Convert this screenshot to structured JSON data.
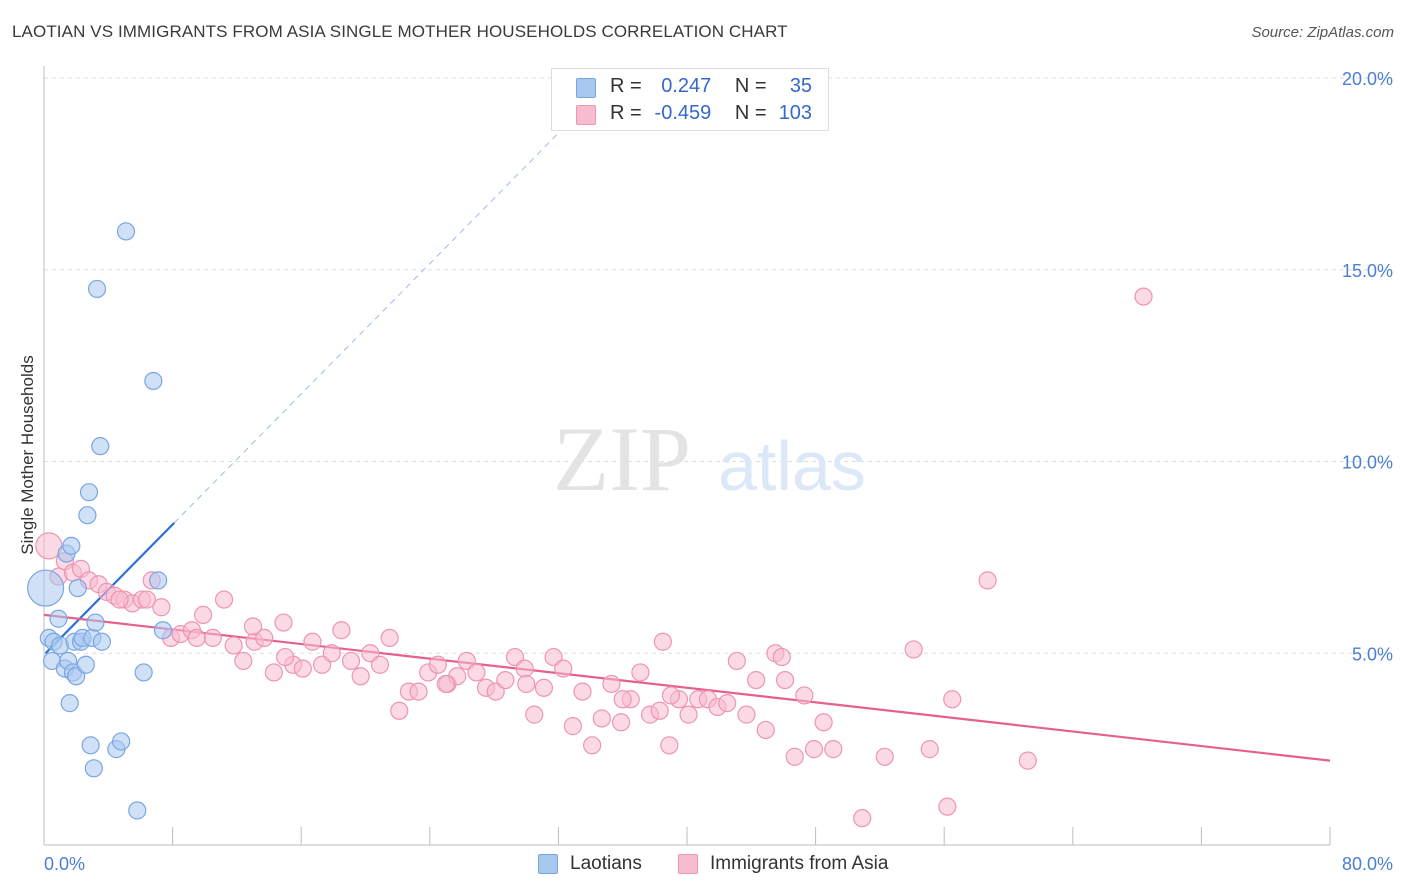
{
  "header": {
    "title": "LAOTIAN VS IMMIGRANTS FROM ASIA SINGLE MOTHER HOUSEHOLDS CORRELATION CHART",
    "source": "Source: ZipAtlas.com"
  },
  "watermark": {
    "zip": "ZIP",
    "atlas": "atlas"
  },
  "legend": {
    "rows": [
      {
        "r_label": "R =",
        "r_value": "0.247",
        "n_label": "N =",
        "n_value": "35"
      },
      {
        "r_label": "R =",
        "r_value": "-0.459",
        "n_label": "N =",
        "n_value": "103"
      }
    ]
  },
  "bottom_legend": {
    "series1": "Laotians",
    "series2": "Immigrants from Asia"
  },
  "colors": {
    "laotian_fill": "#a9c8f0",
    "laotian_stroke": "#7aa6e0",
    "laotian_line": "#2c6fd6",
    "asia_fill": "#f7bcd0",
    "asia_stroke": "#ee94b4",
    "asia_line": "#e5608e",
    "tick_text": "#4a7fd1",
    "grid": "#dddddd"
  },
  "chart_data": {
    "type": "scatter",
    "title": "LAOTIAN VS IMMIGRANTS FROM ASIA SINGLE MOTHER HOUSEHOLDS CORRELATION CHART",
    "xlabel": "",
    "ylabel": "Single Mother Households",
    "xlim": [
      0,
      80
    ],
    "ylim": [
      0,
      20.5
    ],
    "x_tick_labels": [
      "0.0%",
      "80.0%"
    ],
    "y_ticks": [
      5,
      10,
      15,
      20
    ],
    "y_tick_labels": [
      "5.0%",
      "10.0%",
      "15.0%",
      "20.0%"
    ],
    "grid": true,
    "legend_position": "top-center",
    "series": [
      {
        "name": "Laotians",
        "R": 0.247,
        "N": 35,
        "trend": {
          "x0": 0.1,
          "y0": 5.0,
          "x1": 8.1,
          "y1": 8.4,
          "dashed_to": {
            "x": 33.5,
            "y": 19.2
          }
        },
        "points": [
          {
            "x": 0.1,
            "y": 6.7,
            "size": 18
          },
          {
            "x": 0.3,
            "y": 5.4
          },
          {
            "x": 0.5,
            "y": 4.8
          },
          {
            "x": 0.6,
            "y": 5.3
          },
          {
            "x": 0.9,
            "y": 5.9
          },
          {
            "x": 1.0,
            "y": 5.2
          },
          {
            "x": 1.3,
            "y": 4.6
          },
          {
            "x": 1.4,
            "y": 7.6
          },
          {
            "x": 1.5,
            "y": 4.8
          },
          {
            "x": 1.6,
            "y": 3.7
          },
          {
            "x": 1.7,
            "y": 7.8
          },
          {
            "x": 1.8,
            "y": 4.5
          },
          {
            "x": 1.9,
            "y": 5.3
          },
          {
            "x": 2.0,
            "y": 4.4
          },
          {
            "x": 2.1,
            "y": 6.7
          },
          {
            "x": 2.3,
            "y": 5.3
          },
          {
            "x": 2.4,
            "y": 5.4
          },
          {
            "x": 2.6,
            "y": 4.7
          },
          {
            "x": 2.8,
            "y": 9.2
          },
          {
            "x": 3.0,
            "y": 5.4
          },
          {
            "x": 3.2,
            "y": 5.8
          },
          {
            "x": 3.5,
            "y": 10.4
          },
          {
            "x": 3.6,
            "y": 5.3
          },
          {
            "x": 2.7,
            "y": 8.6
          },
          {
            "x": 2.9,
            "y": 2.6
          },
          {
            "x": 3.1,
            "y": 2.0
          },
          {
            "x": 3.3,
            "y": 14.5
          },
          {
            "x": 4.5,
            "y": 2.5
          },
          {
            "x": 4.8,
            "y": 2.7
          },
          {
            "x": 5.1,
            "y": 16.0
          },
          {
            "x": 5.8,
            "y": 0.9
          },
          {
            "x": 6.2,
            "y": 4.5
          },
          {
            "x": 6.8,
            "y": 12.1
          },
          {
            "x": 7.1,
            "y": 6.9
          },
          {
            "x": 7.4,
            "y": 5.6
          }
        ]
      },
      {
        "name": "Immigrants from Asia",
        "R": -0.459,
        "N": 103,
        "trend": {
          "x0": 0,
          "y0": 6.0,
          "x1": 80,
          "y1": 2.2
        },
        "points": [
          {
            "x": 0.3,
            "y": 7.8,
            "size": 13
          },
          {
            "x": 0.9,
            "y": 7.0
          },
          {
            "x": 1.3,
            "y": 7.4
          },
          {
            "x": 1.8,
            "y": 7.1
          },
          {
            "x": 2.3,
            "y": 7.2
          },
          {
            "x": 2.8,
            "y": 6.9
          },
          {
            "x": 3.4,
            "y": 6.8
          },
          {
            "x": 3.9,
            "y": 6.6
          },
          {
            "x": 4.4,
            "y": 6.5
          },
          {
            "x": 5.0,
            "y": 6.4
          },
          {
            "x": 5.5,
            "y": 6.3
          },
          {
            "x": 6.1,
            "y": 6.4
          },
          {
            "x": 6.7,
            "y": 6.9
          },
          {
            "x": 7.3,
            "y": 6.2
          },
          {
            "x": 7.9,
            "y": 5.4
          },
          {
            "x": 8.5,
            "y": 5.5
          },
          {
            "x": 9.2,
            "y": 5.6
          },
          {
            "x": 9.9,
            "y": 6.0
          },
          {
            "x": 10.5,
            "y": 5.4
          },
          {
            "x": 11.2,
            "y": 6.4
          },
          {
            "x": 11.8,
            "y": 5.2
          },
          {
            "x": 12.4,
            "y": 4.8
          },
          {
            "x": 13.1,
            "y": 5.3
          },
          {
            "x": 13.7,
            "y": 5.4
          },
          {
            "x": 14.3,
            "y": 4.5
          },
          {
            "x": 14.9,
            "y": 5.8
          },
          {
            "x": 15.5,
            "y": 4.7
          },
          {
            "x": 16.1,
            "y": 4.6
          },
          {
            "x": 16.7,
            "y": 5.3
          },
          {
            "x": 17.3,
            "y": 4.7
          },
          {
            "x": 17.9,
            "y": 5.0
          },
          {
            "x": 18.5,
            "y": 5.6
          },
          {
            "x": 19.1,
            "y": 4.8
          },
          {
            "x": 19.7,
            "y": 4.4
          },
          {
            "x": 20.3,
            "y": 5.0
          },
          {
            "x": 20.9,
            "y": 4.7
          },
          {
            "x": 21.5,
            "y": 5.4
          },
          {
            "x": 22.1,
            "y": 3.5
          },
          {
            "x": 22.7,
            "y": 4.0
          },
          {
            "x": 23.3,
            "y": 4.0
          },
          {
            "x": 23.9,
            "y": 4.5
          },
          {
            "x": 24.5,
            "y": 4.7
          },
          {
            "x": 25.1,
            "y": 4.2
          },
          {
            "x": 25.7,
            "y": 4.4
          },
          {
            "x": 26.3,
            "y": 4.8
          },
          {
            "x": 26.9,
            "y": 4.5
          },
          {
            "x": 27.5,
            "y": 4.1
          },
          {
            "x": 28.1,
            "y": 4.0
          },
          {
            "x": 28.7,
            "y": 4.3
          },
          {
            "x": 29.3,
            "y": 4.9
          },
          {
            "x": 29.9,
            "y": 4.6
          },
          {
            "x": 30.5,
            "y": 3.4
          },
          {
            "x": 31.1,
            "y": 4.1
          },
          {
            "x": 31.7,
            "y": 4.9
          },
          {
            "x": 32.3,
            "y": 4.6
          },
          {
            "x": 32.9,
            "y": 3.1
          },
          {
            "x": 33.5,
            "y": 4.0
          },
          {
            "x": 34.1,
            "y": 2.6
          },
          {
            "x": 34.7,
            "y": 3.3
          },
          {
            "x": 35.3,
            "y": 4.2
          },
          {
            "x": 35.9,
            "y": 3.2
          },
          {
            "x": 36.5,
            "y": 3.8
          },
          {
            "x": 37.1,
            "y": 4.5
          },
          {
            "x": 37.7,
            "y": 3.4
          },
          {
            "x": 38.3,
            "y": 3.5
          },
          {
            "x": 38.9,
            "y": 2.6
          },
          {
            "x": 39.5,
            "y": 3.8
          },
          {
            "x": 40.1,
            "y": 3.4
          },
          {
            "x": 40.7,
            "y": 3.8
          },
          {
            "x": 41.3,
            "y": 3.8
          },
          {
            "x": 41.9,
            "y": 3.6
          },
          {
            "x": 42.5,
            "y": 3.7
          },
          {
            "x": 43.1,
            "y": 4.8
          },
          {
            "x": 43.7,
            "y": 3.4
          },
          {
            "x": 44.3,
            "y": 4.3
          },
          {
            "x": 44.9,
            "y": 3.0
          },
          {
            "x": 45.5,
            "y": 5.0
          },
          {
            "x": 46.1,
            "y": 4.3
          },
          {
            "x": 46.7,
            "y": 2.3
          },
          {
            "x": 47.3,
            "y": 3.9
          },
          {
            "x": 47.9,
            "y": 2.5
          },
          {
            "x": 48.5,
            "y": 3.2
          },
          {
            "x": 49.1,
            "y": 2.5
          },
          {
            "x": 50.9,
            "y": 0.7
          },
          {
            "x": 52.3,
            "y": 2.3
          },
          {
            "x": 54.1,
            "y": 5.1
          },
          {
            "x": 55.1,
            "y": 2.5
          },
          {
            "x": 56.2,
            "y": 1.0
          },
          {
            "x": 56.5,
            "y": 3.8
          },
          {
            "x": 58.7,
            "y": 6.9
          },
          {
            "x": 61.2,
            "y": 2.2
          },
          {
            "x": 68.4,
            "y": 14.3
          },
          {
            "x": 38.5,
            "y": 5.3
          },
          {
            "x": 39.0,
            "y": 3.9
          },
          {
            "x": 36.0,
            "y": 3.8
          },
          {
            "x": 30.0,
            "y": 4.2
          },
          {
            "x": 25.0,
            "y": 4.2
          },
          {
            "x": 45.9,
            "y": 4.9
          },
          {
            "x": 15.0,
            "y": 4.9
          },
          {
            "x": 9.5,
            "y": 5.4
          },
          {
            "x": 6.4,
            "y": 6.4
          },
          {
            "x": 13.0,
            "y": 5.7
          },
          {
            "x": 4.7,
            "y": 6.4
          }
        ]
      }
    ]
  }
}
